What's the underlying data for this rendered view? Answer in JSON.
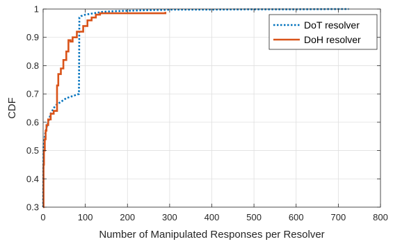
{
  "chart_data": {
    "type": "line",
    "title": "",
    "xlabel": "Number of Manipulated Responses per Resolver",
    "ylabel": "CDF",
    "xlim": [
      0,
      800
    ],
    "ylim": [
      0.3,
      1
    ],
    "xticks": [
      0,
      100,
      200,
      300,
      400,
      500,
      600,
      700,
      800
    ],
    "yticks": [
      0.3,
      0.4,
      0.5,
      0.6,
      0.7,
      0.8,
      0.9,
      1
    ],
    "xtick_labels": [
      "0",
      "100",
      "200",
      "300",
      "400",
      "500",
      "600",
      "700",
      "800"
    ],
    "ytick_labels": [
      "0.3",
      "0.4",
      "0.5",
      "0.6",
      "0.7",
      "0.8",
      "0.9",
      "1"
    ],
    "grid": true,
    "legend_position": "top-right",
    "series": [
      {
        "name": "DoT resolver",
        "color": "#0072BD",
        "style": "dotted",
        "x": [
          0,
          1,
          3,
          5,
          8,
          12,
          18,
          25,
          30,
          35,
          45,
          55,
          65,
          75,
          85,
          86,
          90,
          100,
          120,
          140,
          160,
          200,
          250,
          290,
          300,
          400,
          500,
          600,
          700,
          725
        ],
        "y": [
          0.3,
          0.52,
          0.54,
          0.56,
          0.58,
          0.6,
          0.63,
          0.65,
          0.66,
          0.665,
          0.675,
          0.685,
          0.69,
          0.695,
          0.7,
          0.97,
          0.975,
          0.98,
          0.985,
          0.99,
          0.992,
          0.994,
          0.996,
          0.997,
          0.998,
          0.998,
          0.999,
          0.999,
          1.0,
          1.0
        ]
      },
      {
        "name": "DoH resolver",
        "color": "#D95319",
        "style": "solid",
        "x": [
          0,
          1,
          1,
          2,
          2,
          4,
          4,
          6,
          6,
          8,
          8,
          12,
          12,
          18,
          18,
          25,
          25,
          33,
          33,
          36,
          36,
          42,
          42,
          48,
          48,
          55,
          55,
          60,
          60,
          65,
          65,
          70,
          70,
          80,
          80,
          95,
          95,
          105,
          105,
          115,
          115,
          125,
          125,
          135,
          135,
          290,
          290
        ],
        "y": [
          0.3,
          0.3,
          0.45,
          0.45,
          0.5,
          0.5,
          0.54,
          0.54,
          0.57,
          0.57,
          0.59,
          0.59,
          0.61,
          0.61,
          0.63,
          0.63,
          0.64,
          0.64,
          0.73,
          0.73,
          0.77,
          0.77,
          0.79,
          0.79,
          0.82,
          0.82,
          0.85,
          0.85,
          0.89,
          0.89,
          0.885,
          0.885,
          0.9,
          0.9,
          0.92,
          0.92,
          0.94,
          0.94,
          0.96,
          0.96,
          0.97,
          0.97,
          0.98,
          0.98,
          0.985,
          0.985,
          0.99
        ]
      }
    ]
  }
}
